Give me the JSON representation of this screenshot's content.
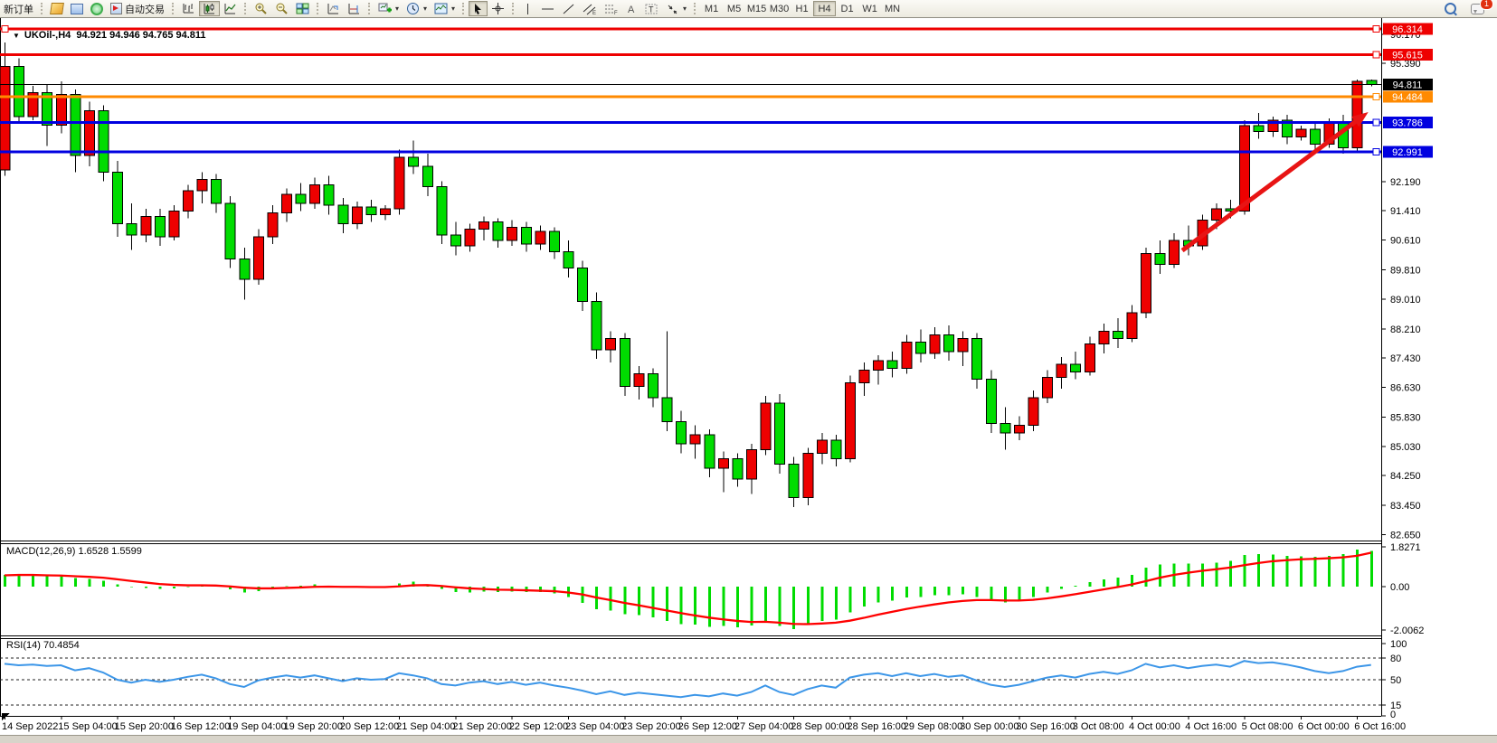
{
  "toolbar": {
    "new_order": "新订单",
    "auto_trading": "自动交易",
    "timeframes": [
      "M1",
      "M5",
      "M15",
      "M30",
      "H1",
      "H4",
      "D1",
      "W1",
      "MN"
    ],
    "active_timeframe": "H4",
    "notification_count": "1"
  },
  "chart": {
    "symbol_period": "UKOil-,H4",
    "ohlc": "94.921 94.946 94.765 94.811",
    "collapse_arrow": "▼"
  },
  "indicators": {
    "macd_name": "MACD(12,26,9)",
    "macd_values": "1.6528 1.5599",
    "rsi_name": "RSI(14)",
    "rsi_value": "70.4854"
  },
  "chart_data": {
    "type": "candlestick",
    "symbol": "UKOil-",
    "timeframe": "H4",
    "bull_color": "#ee0000",
    "bear_color": "#00dc00",
    "bars_per_label": 4,
    "x_labels": [
      "14 Sep 2022",
      "15 Sep 04:00",
      "15 Sep 20:00",
      "16 Sep 12:00",
      "19 Sep 04:00",
      "19 Sep 20:00",
      "20 Sep 12:00",
      "21 Sep 04:00",
      "21 Sep 20:00",
      "22 Sep 12:00",
      "23 Sep 04:00",
      "23 Sep 20:00",
      "26 Sep 12:00",
      "27 Sep 04:00",
      "28 Sep 00:00",
      "28 Sep 16:00",
      "29 Sep 08:00",
      "30 Sep 00:00",
      "30 Sep 16:00",
      "3 Oct 08:00",
      "4 Oct 00:00",
      "4 Oct 16:00",
      "5 Oct 08:00",
      "6 Oct 00:00",
      "6 Oct 16:00"
    ],
    "price_axis_ticks": [
      96.17,
      95.39,
      92.19,
      91.41,
      90.61,
      89.81,
      89.01,
      88.21,
      87.43,
      86.63,
      85.83,
      85.03,
      84.25,
      83.45,
      82.65
    ],
    "current_price": 94.811,
    "hlines": [
      {
        "price": 96.314,
        "color": "#ee0000",
        "width": 3,
        "left_handle": true
      },
      {
        "price": 95.615,
        "color": "#ee0000",
        "width": 3
      },
      {
        "price": 94.484,
        "color": "#ff8a00",
        "width": 3
      },
      {
        "price": 93.786,
        "color": "#0000e0",
        "width": 3
      },
      {
        "price": 92.991,
        "color": "#0000e0",
        "width": 3
      }
    ],
    "trend_arrow": {
      "from_bar": 83.6,
      "from_price": 90.33,
      "to_bar": 96.8,
      "to_price": 94.07,
      "color": "#e81414"
    },
    "candles": [
      [
        92.5,
        95.95,
        92.35,
        95.3
      ],
      [
        95.3,
        95.52,
        93.78,
        93.95
      ],
      [
        93.95,
        94.78,
        93.85,
        94.6
      ],
      [
        94.6,
        94.8,
        93.15,
        93.72
      ],
      [
        93.72,
        94.9,
        93.5,
        94.55
      ],
      [
        94.55,
        94.68,
        92.45,
        92.9
      ],
      [
        92.9,
        94.35,
        92.6,
        94.1
      ],
      [
        94.1,
        94.25,
        92.2,
        92.45
      ],
      [
        92.45,
        92.75,
        90.7,
        91.05
      ],
      [
        91.05,
        91.6,
        90.35,
        90.75
      ],
      [
        90.75,
        91.45,
        90.55,
        91.25
      ],
      [
        91.25,
        91.45,
        90.45,
        90.7
      ],
      [
        90.7,
        91.55,
        90.6,
        91.4
      ],
      [
        91.4,
        92.1,
        91.2,
        91.95
      ],
      [
        91.95,
        92.45,
        91.6,
        92.25
      ],
      [
        92.25,
        92.4,
        91.35,
        91.6
      ],
      [
        91.6,
        91.8,
        89.85,
        90.1
      ],
      [
        90.1,
        90.4,
        89.0,
        89.55
      ],
      [
        89.55,
        90.9,
        89.4,
        90.7
      ],
      [
        90.7,
        91.55,
        90.5,
        91.35
      ],
      [
        91.35,
        92.0,
        91.1,
        91.85
      ],
      [
        91.85,
        92.15,
        91.4,
        91.6
      ],
      [
        91.6,
        92.3,
        91.45,
        92.1
      ],
      [
        92.1,
        92.35,
        91.3,
        91.55
      ],
      [
        91.55,
        91.75,
        90.8,
        91.05
      ],
      [
        91.05,
        91.65,
        90.9,
        91.5
      ],
      [
        91.5,
        91.7,
        91.1,
        91.3
      ],
      [
        91.3,
        91.55,
        91.15,
        91.45
      ],
      [
        91.45,
        93.05,
        91.3,
        92.85
      ],
      [
        92.85,
        93.3,
        92.4,
        92.6
      ],
      [
        92.6,
        92.95,
        91.8,
        92.05
      ],
      [
        92.05,
        92.2,
        90.5,
        90.75
      ],
      [
        90.75,
        91.1,
        90.2,
        90.45
      ],
      [
        90.45,
        91.05,
        90.3,
        90.9
      ],
      [
        90.9,
        91.25,
        90.6,
        91.1
      ],
      [
        91.1,
        91.2,
        90.4,
        90.6
      ],
      [
        90.6,
        91.15,
        90.45,
        90.95
      ],
      [
        90.95,
        91.1,
        90.3,
        90.5
      ],
      [
        90.5,
        91.0,
        90.35,
        90.85
      ],
      [
        90.85,
        90.95,
        90.1,
        90.3
      ],
      [
        90.3,
        90.6,
        89.6,
        89.85
      ],
      [
        89.85,
        90.05,
        88.7,
        88.95
      ],
      [
        88.95,
        89.2,
        87.4,
        87.65
      ],
      [
        87.65,
        88.15,
        87.3,
        87.95
      ],
      [
        87.95,
        88.1,
        86.4,
        86.65
      ],
      [
        86.65,
        87.2,
        86.3,
        87.0
      ],
      [
        87.0,
        87.15,
        86.1,
        86.35
      ],
      [
        86.35,
        88.15,
        85.45,
        85.7
      ],
      [
        85.7,
        86.0,
        84.85,
        85.1
      ],
      [
        85.1,
        85.6,
        84.7,
        85.35
      ],
      [
        85.35,
        85.5,
        84.2,
        84.45
      ],
      [
        84.45,
        84.9,
        83.8,
        84.7
      ],
      [
        84.7,
        84.85,
        83.95,
        84.15
      ],
      [
        84.15,
        85.1,
        83.75,
        84.95
      ],
      [
        84.95,
        86.4,
        84.8,
        86.2
      ],
      [
        86.2,
        86.45,
        84.3,
        84.55
      ],
      [
        84.55,
        84.75,
        83.4,
        83.65
      ],
      [
        83.65,
        85.0,
        83.45,
        84.85
      ],
      [
        84.85,
        85.4,
        84.55,
        85.2
      ],
      [
        85.2,
        85.35,
        84.5,
        84.7
      ],
      [
        84.7,
        86.95,
        84.6,
        86.75
      ],
      [
        86.75,
        87.3,
        86.4,
        87.1
      ],
      [
        87.1,
        87.5,
        86.7,
        87.35
      ],
      [
        87.35,
        87.6,
        86.9,
        87.15
      ],
      [
        87.15,
        88.05,
        87.0,
        87.85
      ],
      [
        87.85,
        88.2,
        87.3,
        87.55
      ],
      [
        87.55,
        88.25,
        87.4,
        88.05
      ],
      [
        88.05,
        88.3,
        87.35,
        87.6
      ],
      [
        87.6,
        88.15,
        87.2,
        87.95
      ],
      [
        87.95,
        88.1,
        86.6,
        86.85
      ],
      [
        86.85,
        87.1,
        85.4,
        85.65
      ],
      [
        85.65,
        86.1,
        84.95,
        85.4
      ],
      [
        85.4,
        85.85,
        85.2,
        85.6
      ],
      [
        85.6,
        86.55,
        85.45,
        86.35
      ],
      [
        86.35,
        87.1,
        86.2,
        86.9
      ],
      [
        86.9,
        87.45,
        86.6,
        87.25
      ],
      [
        87.25,
        87.6,
        86.85,
        87.05
      ],
      [
        87.05,
        88.0,
        86.95,
        87.8
      ],
      [
        87.8,
        88.35,
        87.55,
        88.15
      ],
      [
        88.15,
        88.5,
        87.7,
        87.95
      ],
      [
        87.95,
        88.85,
        87.85,
        88.65
      ],
      [
        88.65,
        90.4,
        88.5,
        90.25
      ],
      [
        90.25,
        90.6,
        89.7,
        89.95
      ],
      [
        89.95,
        90.8,
        89.85,
        90.6
      ],
      [
        90.6,
        91.0,
        90.2,
        90.45
      ],
      [
        90.45,
        91.3,
        90.35,
        91.15
      ],
      [
        91.15,
        91.6,
        90.9,
        91.45
      ],
      [
        91.45,
        91.7,
        91.2,
        91.4
      ],
      [
        91.4,
        93.85,
        91.3,
        93.7
      ],
      [
        93.7,
        94.05,
        93.35,
        93.55
      ],
      [
        93.55,
        93.95,
        93.4,
        93.85
      ],
      [
        93.85,
        94.0,
        93.2,
        93.4
      ],
      [
        93.4,
        93.7,
        93.3,
        93.6
      ],
      [
        93.6,
        93.75,
        93.05,
        93.2
      ],
      [
        93.2,
        93.9,
        93.1,
        93.8
      ],
      [
        93.8,
        94.0,
        92.95,
        93.1
      ],
      [
        93.1,
        94.95,
        93.0,
        94.9
      ],
      [
        94.921,
        94.946,
        94.765,
        94.811
      ]
    ],
    "macd": {
      "params": "12,26,9",
      "axis_labels": [
        "1.8271",
        "0.00",
        "-2.0062"
      ],
      "axis_values": [
        1.8271,
        0,
        -2.0062
      ],
      "histogram_color": "#00dc00",
      "signal_color": "#ff0000",
      "values": [
        0.55,
        0.58,
        0.52,
        0.48,
        0.5,
        0.4,
        0.35,
        0.28,
        0.1,
        -0.02,
        -0.06,
        -0.1,
        -0.08,
        -0.02,
        0.06,
        0.04,
        -0.12,
        -0.28,
        -0.2,
        -0.08,
        0.02,
        0.05,
        0.1,
        0.05,
        -0.04,
        -0.02,
        -0.05,
        -0.03,
        0.15,
        0.22,
        0.1,
        -0.1,
        -0.25,
        -0.28,
        -0.22,
        -0.24,
        -0.22,
        -0.26,
        -0.24,
        -0.32,
        -0.48,
        -0.75,
        -1.05,
        -1.1,
        -1.28,
        -1.32,
        -1.42,
        -1.58,
        -1.72,
        -1.75,
        -1.85,
        -1.82,
        -1.88,
        -1.8,
        -1.6,
        -1.82,
        -1.95,
        -1.78,
        -1.58,
        -1.52,
        -1.18,
        -0.92,
        -0.72,
        -0.65,
        -0.5,
        -0.48,
        -0.4,
        -0.4,
        -0.36,
        -0.48,
        -0.62,
        -0.72,
        -0.65,
        -0.48,
        -0.28,
        -0.1,
        0.04,
        0.2,
        0.34,
        0.42,
        0.55,
        0.88,
        1.02,
        1.06,
        1.06,
        1.06,
        1.1,
        1.18,
        1.45,
        1.5,
        1.48,
        1.42,
        1.4,
        1.38,
        1.42,
        1.5,
        1.7,
        1.65
      ],
      "signal": [
        0.52,
        0.54,
        0.54,
        0.52,
        0.51,
        0.48,
        0.45,
        0.41,
        0.34,
        0.26,
        0.19,
        0.12,
        0.08,
        0.06,
        0.06,
        0.05,
        0.01,
        -0.05,
        -0.08,
        -0.08,
        -0.06,
        -0.04,
        -0.01,
        0.0,
        -0.01,
        -0.01,
        -0.02,
        -0.02,
        0.01,
        0.06,
        0.07,
        0.03,
        -0.03,
        -0.08,
        -0.11,
        -0.14,
        -0.15,
        -0.17,
        -0.19,
        -0.21,
        -0.27,
        -0.36,
        -0.5,
        -0.62,
        -0.75,
        -0.86,
        -0.98,
        -1.1,
        -1.22,
        -1.33,
        -1.43,
        -1.51,
        -1.58,
        -1.63,
        -1.62,
        -1.66,
        -1.72,
        -1.73,
        -1.7,
        -1.66,
        -1.57,
        -1.44,
        -1.29,
        -1.16,
        -1.03,
        -0.92,
        -0.82,
        -0.73,
        -0.66,
        -0.62,
        -0.62,
        -0.64,
        -0.64,
        -0.61,
        -0.54,
        -0.45,
        -0.35,
        -0.24,
        -0.13,
        -0.02,
        0.1,
        0.25,
        0.41,
        0.54,
        0.64,
        0.73,
        0.8,
        0.88,
        0.99,
        1.09,
        1.17,
        1.22,
        1.26,
        1.28,
        1.31,
        1.35,
        1.42,
        1.56
      ]
    },
    "rsi": {
      "params": "14",
      "line_color": "#3c96e8",
      "axis_ticks": [
        100,
        80,
        50,
        15,
        0
      ],
      "dashed_levels": [
        80,
        50,
        15
      ],
      "values": [
        72,
        70,
        71,
        69,
        70,
        63,
        66,
        60,
        50,
        46,
        50,
        47,
        50,
        54,
        57,
        52,
        44,
        40,
        49,
        53,
        56,
        53,
        56,
        52,
        48,
        52,
        50,
        51,
        59,
        56,
        52,
        44,
        42,
        46,
        48,
        44,
        47,
        43,
        46,
        42,
        39,
        35,
        30,
        34,
        29,
        32,
        30,
        28,
        26,
        29,
        27,
        31,
        28,
        33,
        42,
        33,
        29,
        37,
        42,
        39,
        53,
        57,
        59,
        55,
        59,
        55,
        58,
        54,
        56,
        49,
        43,
        40,
        43,
        48,
        53,
        56,
        53,
        58,
        61,
        58,
        63,
        72,
        67,
        70,
        66,
        69,
        71,
        68,
        76,
        73,
        74,
        71,
        67,
        62,
        59,
        62,
        68,
        70.49
      ]
    }
  }
}
